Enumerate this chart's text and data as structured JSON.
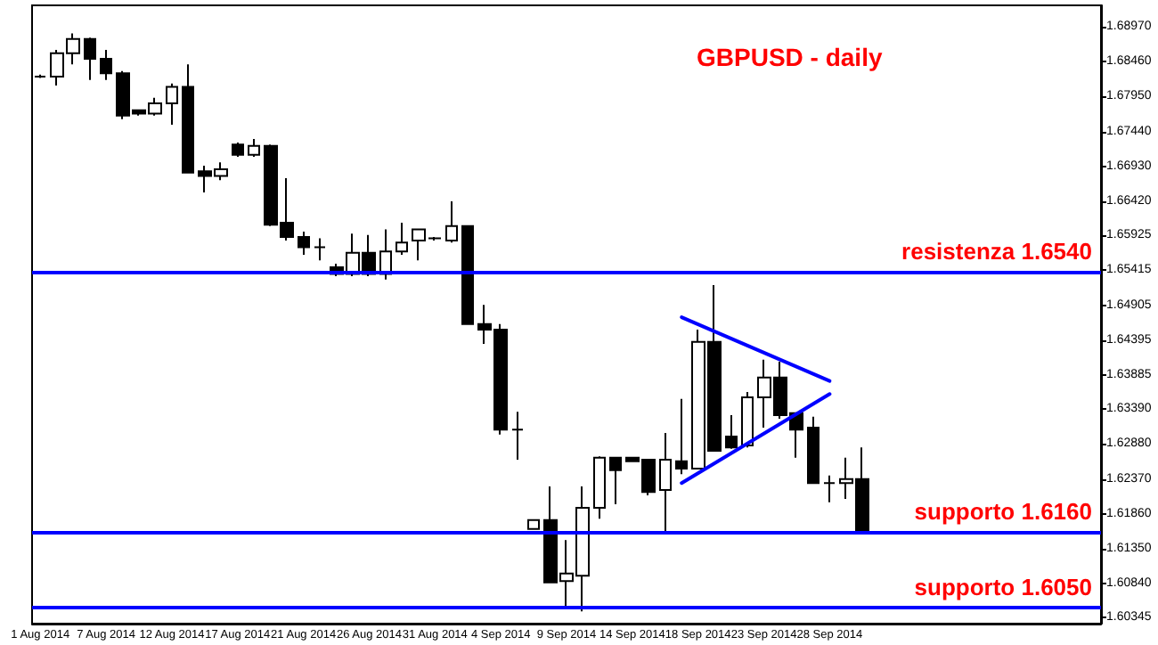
{
  "chart_data": {
    "type": "candlestick",
    "title": "GBPUSD - daily",
    "categories": [
      "1 Aug 2014",
      null,
      null,
      null,
      "7 Aug 2014",
      null,
      null,
      null,
      "12 Aug 2014",
      null,
      null,
      null,
      "17 Aug 2014",
      null,
      null,
      null,
      "21 Aug 2014",
      null,
      null,
      null,
      "26 Aug 2014",
      null,
      null,
      null,
      "31 Aug 2014",
      null,
      null,
      null,
      "4 Sep 2014",
      null,
      null,
      null,
      "9 Sep 2014",
      null,
      null,
      null,
      "14 Sep 2014",
      null,
      null,
      null,
      "18 Sep 2014",
      null,
      null,
      null,
      "23 Sep 2014",
      null,
      null,
      null,
      "28 Sep 2014",
      null,
      null,
      null,
      null,
      null,
      null,
      null,
      null,
      null,
      null,
      null,
      null,
      null,
      null,
      null,
      null
    ],
    "ohlc": [
      [
        1.6824,
        1.6827,
        1.6822,
        1.6824
      ],
      [
        1.6824,
        1.6863,
        1.6811,
        1.6858
      ],
      [
        1.6858,
        1.6887,
        1.6842,
        1.6879
      ],
      [
        1.6879,
        1.6881,
        1.6819,
        1.685
      ],
      [
        1.685,
        1.6863,
        1.6819,
        1.6829
      ],
      [
        1.6829,
        1.6832,
        1.6762,
        1.6767
      ],
      [
        1.6775,
        1.6775,
        1.6767,
        1.677
      ],
      [
        1.677,
        1.6793,
        1.6767,
        1.6785
      ],
      [
        1.6785,
        1.6814,
        1.6754,
        1.6809
      ],
      [
        1.6809,
        1.6842,
        1.6684,
        1.6684
      ],
      [
        1.6686,
        1.6694,
        1.6655,
        1.6679
      ],
      [
        1.6679,
        1.6699,
        1.6673,
        1.6689
      ],
      [
        1.6725,
        1.6728,
        1.6707,
        1.671
      ],
      [
        1.671,
        1.6733,
        1.6707,
        1.6723
      ],
      [
        1.6723,
        1.6725,
        1.6606,
        1.6608
      ],
      [
        1.6611,
        1.6676,
        1.6585,
        1.659
      ],
      [
        1.659,
        1.6598,
        1.6564,
        1.6575
      ],
      [
        1.6575,
        1.6588,
        1.6556,
        1.6575
      ],
      [
        1.6546,
        1.6551,
        1.6533,
        1.6536
      ],
      [
        1.6536,
        1.6595,
        1.6533,
        1.6567
      ],
      [
        1.6567,
        1.6593,
        1.6533,
        1.6536
      ],
      [
        1.6536,
        1.6601,
        1.6528,
        1.6569
      ],
      [
        1.6569,
        1.6611,
        1.6564,
        1.6582
      ],
      [
        1.6585,
        1.6601,
        1.6556,
        1.6601
      ],
      [
        1.6588,
        1.659,
        1.6585,
        1.6588
      ],
      [
        1.6585,
        1.6642,
        1.6582,
        1.6606
      ],
      [
        1.6606,
        1.6606,
        1.6463,
        1.6463
      ],
      [
        1.6463,
        1.6491,
        1.6434,
        1.6455
      ],
      [
        1.6455,
        1.6463,
        1.6302,
        1.6309
      ],
      [
        1.6309,
        1.6335,
        1.6265,
        1.6309
      ],
      [
        1.6164,
        1.6177,
        1.6164,
        1.6177
      ],
      [
        1.6177,
        1.6226,
        1.6086,
        1.6086
      ],
      [
        1.6088,
        1.6148,
        1.6052,
        1.6099
      ],
      [
        1.6096,
        1.6226,
        1.6044,
        1.6195
      ],
      [
        1.6195,
        1.627,
        1.6179,
        1.6268
      ],
      [
        1.6268,
        1.6268,
        1.62,
        1.625
      ],
      [
        1.6268,
        1.6268,
        1.6263,
        1.6263
      ],
      [
        1.6265,
        1.6265,
        1.6213,
        1.6218
      ],
      [
        1.6221,
        1.6304,
        1.6159,
        1.6265
      ],
      [
        1.6263,
        1.6354,
        1.6244,
        1.6252
      ],
      [
        1.6252,
        1.6455,
        1.6252,
        1.6437
      ],
      [
        1.6437,
        1.652,
        1.6278,
        1.6278
      ],
      [
        1.6299,
        1.633,
        1.6281,
        1.6283
      ],
      [
        1.6286,
        1.6364,
        1.6283,
        1.6356
      ],
      [
        1.6356,
        1.6411,
        1.6312,
        1.6385
      ],
      [
        1.6385,
        1.6408,
        1.6325,
        1.633
      ],
      [
        1.6333,
        1.6333,
        1.6268,
        1.6309
      ],
      [
        1.6312,
        1.6328,
        1.6231,
        1.6231
      ],
      [
        1.6231,
        1.6242,
        1.6203,
        1.6231
      ],
      [
        1.6231,
        1.6268,
        1.6208,
        1.6237
      ],
      [
        1.6237,
        1.6283,
        1.6161,
        1.6161
      ],
      null,
      null,
      null,
      null,
      null,
      null,
      null,
      null,
      null,
      null,
      null,
      null,
      null,
      null
    ],
    "series": [
      {
        "type": "line",
        "color": "#0000ff",
        "values": [
          null,
          null,
          null,
          null,
          null,
          null,
          null,
          null,
          null,
          null,
          null,
          null,
          null,
          null,
          null,
          null,
          null,
          null,
          null,
          null,
          null,
          null,
          null,
          null,
          null,
          null,
          null,
          null,
          null,
          null,
          null,
          null,
          null,
          null,
          null,
          null,
          null,
          null,
          null,
          1.6473,
          null,
          null,
          null,
          null,
          null,
          null,
          null,
          null,
          1.638,
          null,
          null,
          null,
          null,
          null,
          null,
          null,
          null,
          null,
          null,
          null,
          null,
          null,
          null,
          null,
          null
        ]
      },
      {
        "type": "line",
        "color": "#0000ff",
        "values": [
          null,
          null,
          null,
          null,
          null,
          null,
          null,
          null,
          null,
          null,
          null,
          null,
          null,
          null,
          null,
          null,
          null,
          null,
          null,
          null,
          null,
          null,
          null,
          null,
          null,
          null,
          null,
          null,
          null,
          null,
          null,
          null,
          null,
          null,
          null,
          null,
          null,
          null,
          null,
          1.6231,
          null,
          null,
          null,
          null,
          null,
          null,
          null,
          null,
          1.6361,
          null,
          null,
          null,
          null,
          null,
          null,
          null,
          null,
          null,
          null,
          null,
          null,
          null,
          null,
          null,
          null
        ]
      }
    ],
    "ylim": [
      1.6026,
      1.6928
    ],
    "yticks": [
      {
        "value": 1.6897,
        "label": "1.68970"
      },
      {
        "value": 1.6846,
        "label": "1.68460"
      },
      {
        "value": 1.6795,
        "label": "1.67950"
      },
      {
        "value": 1.6744,
        "label": "1.67440"
      },
      {
        "value": 1.6693,
        "label": "1.66930"
      },
      {
        "value": 1.6642,
        "label": "1.66420"
      },
      {
        "value": 1.65925,
        "label": "1.65925"
      },
      {
        "value": 1.65415,
        "label": "1.65415"
      },
      {
        "value": 1.64905,
        "label": "1.64905"
      },
      {
        "value": 1.64395,
        "label": "1.64395"
      },
      {
        "value": 1.63885,
        "label": "1.63885"
      },
      {
        "value": 1.6339,
        "label": "1.63390"
      },
      {
        "value": 1.6288,
        "label": "1.62880"
      },
      {
        "value": 1.6237,
        "label": "1.62370"
      },
      {
        "value": 1.6186,
        "label": "1.61860"
      },
      {
        "value": 1.6135,
        "label": "1.61350"
      },
      {
        "value": 1.6084,
        "label": "1.60840"
      },
      {
        "value": 1.60345,
        "label": "1.60345"
      }
    ],
    "ref_lines": [
      {
        "axis": "y",
        "value": 1.654,
        "label": "resistenza 1.6540",
        "color": "#0000ff"
      },
      {
        "axis": "y",
        "value": 1.616,
        "label": "supporto 1.6160",
        "color": "#0000ff"
      },
      {
        "axis": "y",
        "value": 1.605,
        "label": "supporto 1.6050",
        "color": "#0000ff"
      }
    ],
    "grid": false
  }
}
